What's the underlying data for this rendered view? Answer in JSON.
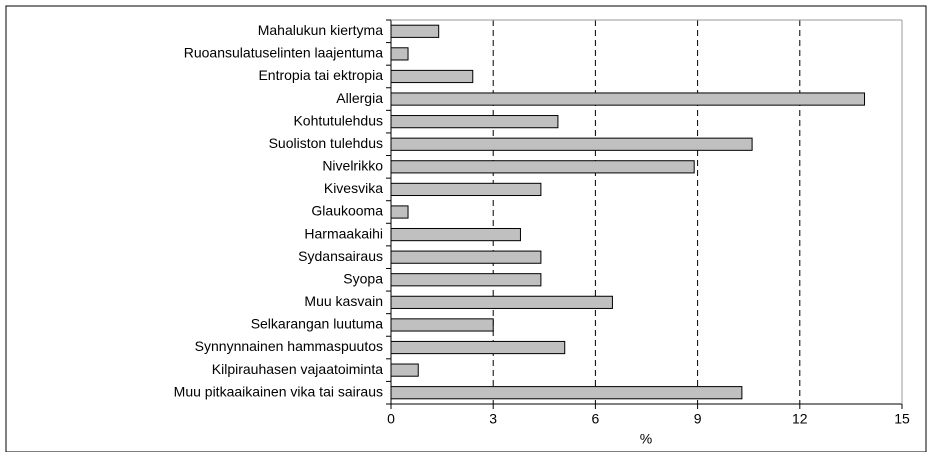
{
  "chart_data": {
    "type": "bar",
    "orientation": "horizontal",
    "categories": [
      "Mahalukun kiertyma",
      "Ruoansulatuselinten laajentuma",
      "Entropia tai ektropia",
      "Allergia",
      "Kohtutulehdus",
      "Suoliston tulehdus",
      "Nivelrikko",
      "Kivesvika",
      "Glaukooma",
      "Harmaakaihi",
      "Sydansairaus",
      "Syopa",
      "Muu kasvain",
      "Selkarangan luutuma",
      "Synnynnainen hammaspuutos",
      "Kilpirauhasen vajaatoiminta",
      "Muu pitkaaikainen vika tai sairaus"
    ],
    "values": [
      1.4,
      0.5,
      2.4,
      13.9,
      4.9,
      10.6,
      8.9,
      4.4,
      0.5,
      3.8,
      4.4,
      4.4,
      6.5,
      3.0,
      5.1,
      0.8,
      10.3
    ],
    "color": "#c0c0c0",
    "xlabel": "%",
    "xlim": [
      0,
      15
    ],
    "xticks": [
      0,
      3,
      6,
      9,
      12,
      15
    ],
    "grid": true
  }
}
